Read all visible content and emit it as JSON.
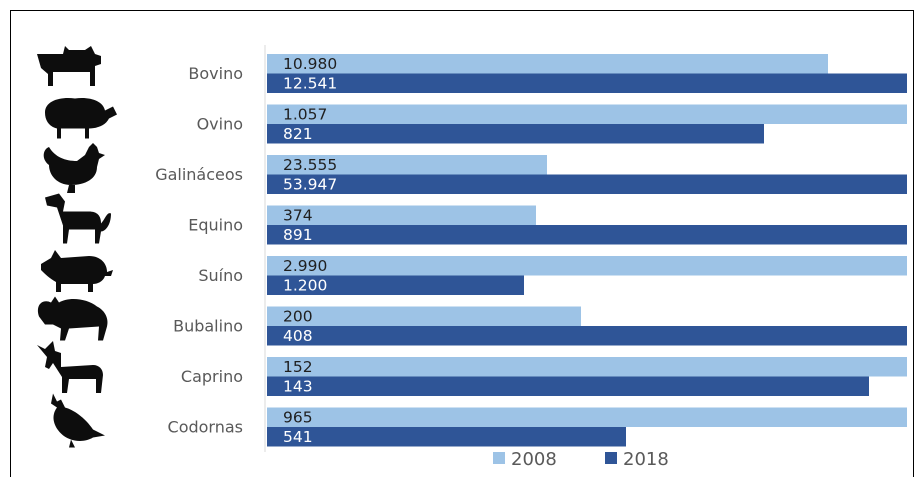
{
  "chart_data": {
    "type": "bar",
    "orientation": "horizontal",
    "categories": [
      "Bovino",
      "Ovino",
      "Galináceos",
      "Equino",
      "Suíno",
      "Bubalino",
      "Caprino",
      "Codornas"
    ],
    "icons": [
      "cow-icon",
      "sheep-icon",
      "chicken-icon",
      "horse-icon",
      "pig-icon",
      "buffalo-icon",
      "goat-icon",
      "quail-icon"
    ],
    "series": [
      {
        "name": "2008",
        "color": "#9DC3E6",
        "values": [
          10980,
          1057,
          23555,
          374,
          2990,
          200,
          152,
          965
        ],
        "labels": [
          "10.980",
          "1.057",
          "23.555",
          "374",
          "2.990",
          "200",
          "152",
          "965"
        ],
        "relative_lengths": [
          0.876,
          1.0,
          0.437,
          0.42,
          1.0,
          0.49,
          1.0,
          1.0
        ]
      },
      {
        "name": "2018",
        "color": "#2F5597",
        "values": [
          12541,
          821,
          53947,
          891,
          1200,
          408,
          143,
          541
        ],
        "labels": [
          "12.541",
          "821",
          "53.947",
          "891",
          "1.200",
          "408",
          "143",
          "541"
        ],
        "relative_lengths": [
          1.0,
          0.777,
          1.0,
          1.0,
          0.401,
          1.0,
          0.941,
          0.561
        ]
      }
    ],
    "note": "each category scaled so its larger value spans the full width",
    "legend_position": "bottom",
    "grid": false
  }
}
